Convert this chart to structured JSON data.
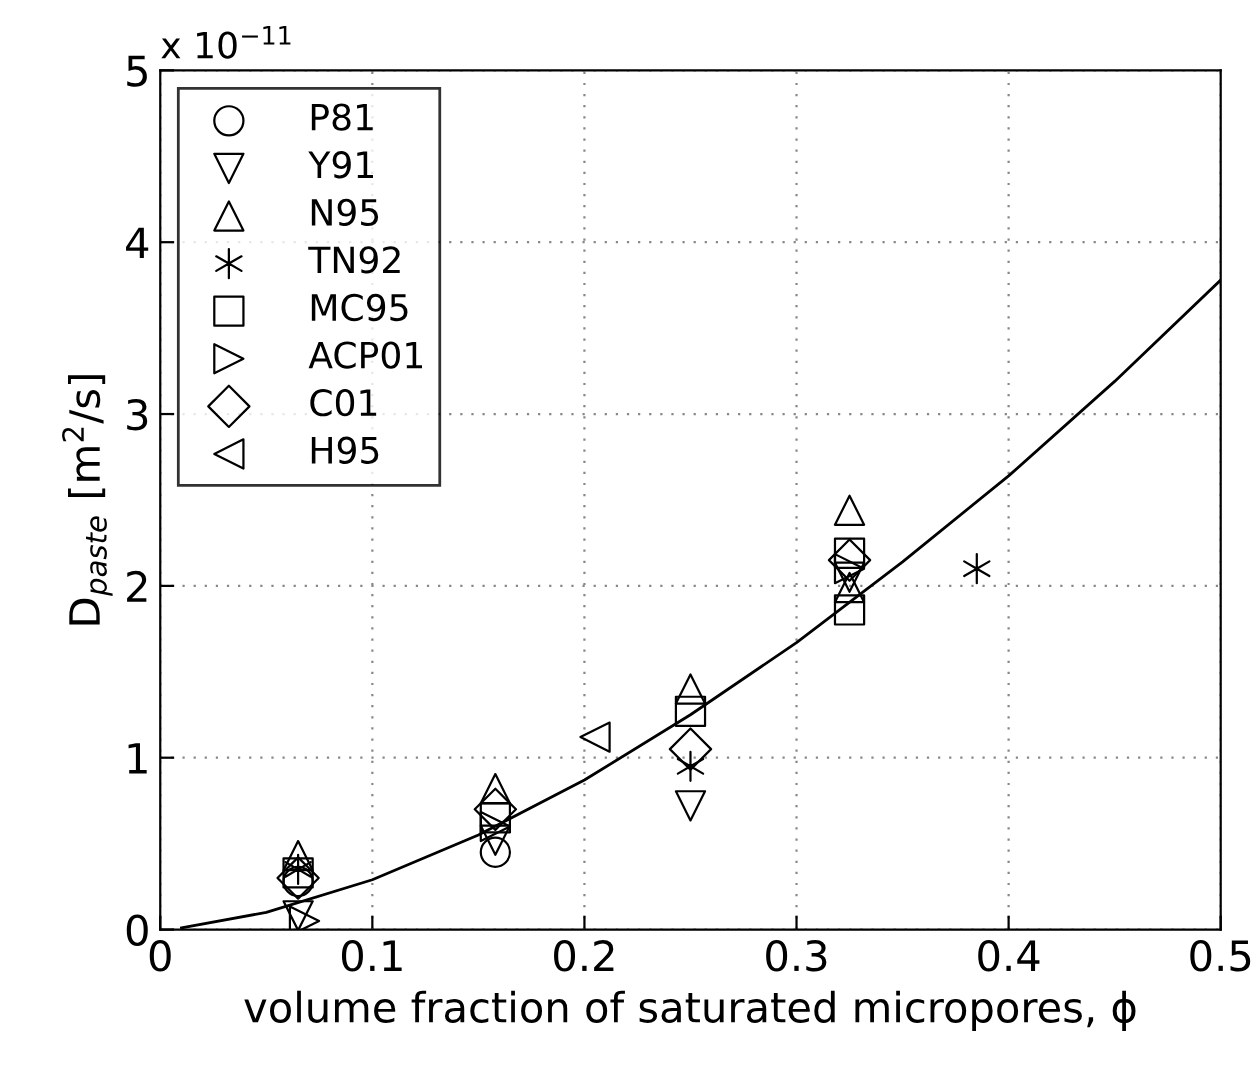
{
  "chart_data": {
    "type": "scatter",
    "xlabel": "volume fraction of saturated micropores, ϕ",
    "ylabel": "D$_{paste}$ [m$^{2}$/s]",
    "annotations": [
      "x 10$^{−11}$"
    ],
    "xlim": [
      0,
      0.5
    ],
    "xticks": [
      0,
      0.1,
      0.2,
      0.3,
      0.4,
      0.5
    ],
    "ylim": [
      0,
      5
    ],
    "yticks": [
      0,
      1,
      2,
      3,
      4,
      5
    ],
    "grid": true,
    "legend": "top left",
    "series": [
      {
        "name": "P81",
        "color": "#000000",
        "marker": "circle",
        "x": [
          0.065,
          0.158
        ],
        "values": [
          0.28,
          0.45
        ]
      },
      {
        "name": "Y91",
        "color": "#000000",
        "marker": "triangle_down",
        "x": [
          0.065,
          0.158,
          0.25,
          0.325
        ],
        "values": [
          0.08,
          0.52,
          0.72,
          2.05
        ]
      },
      {
        "name": "N95",
        "color": "#000000",
        "marker": "triangle",
        "x": [
          0.065,
          0.158,
          0.25,
          0.325,
          0.325
        ],
        "values": [
          0.43,
          0.82,
          1.4,
          2.44,
          1.99
        ]
      },
      {
        "name": "TN92",
        "color": "#000000",
        "marker": "cross",
        "x": [
          0.065,
          0.25,
          0.385
        ],
        "values": [
          0.35,
          0.95,
          2.1
        ]
      },
      {
        "name": "MC95",
        "color": "#000000",
        "marker": "square",
        "x": [
          0.065,
          0.158,
          0.25,
          0.325,
          0.325
        ],
        "values": [
          0.33,
          0.65,
          1.27,
          2.19,
          1.86
        ]
      },
      {
        "name": "ACP01",
        "color": "#000000",
        "marker": "triangle_right",
        "x": [
          0.068,
          0.158,
          0.25,
          0.325
        ],
        "values": [
          0.05,
          0.6,
          null,
          2.1
        ]
      },
      {
        "name": "C01",
        "color": "#000000",
        "marker": "diamond",
        "x": [
          0.065,
          0.158,
          0.25,
          0.325
        ],
        "values": [
          0.3,
          0.7,
          1.05,
          2.15
        ]
      },
      {
        "name": "H95",
        "color": "#000000",
        "marker": "triangle_left",
        "x": [
          0.205
        ],
        "values": [
          1.12
        ]
      },
      {
        "type": "line",
        "color": "#000000",
        "marker": "none",
        "line_style": "solid",
        "x": [
          0.01,
          0.05,
          0.1,
          0.15,
          0.2,
          0.25,
          0.3,
          0.35,
          0.4,
          0.45,
          0.5
        ],
        "values": [
          0.01,
          0.1,
          0.29,
          0.55,
          0.87,
          1.25,
          1.67,
          2.14,
          2.64,
          3.19,
          3.78
        ]
      }
    ]
  }
}
